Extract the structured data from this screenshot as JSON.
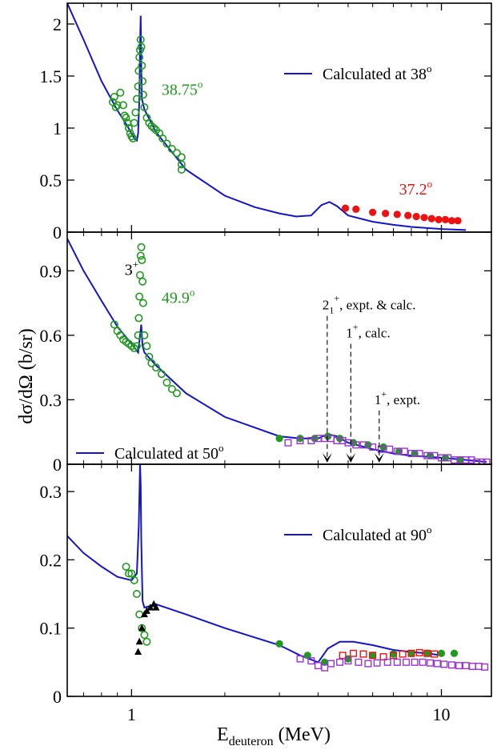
{
  "figure": {
    "xlabel_main": "E",
    "xlabel_sub": "deuteron",
    "xlabel_unit": " (MeV)",
    "ylabel": "dσ/dΩ (b/sr)"
  },
  "x_axis": {
    "scale": "log",
    "xlim": [
      0.62,
      14.5
    ],
    "ticks": [
      {
        "v": 1,
        "label": "1"
      },
      {
        "v": 10,
        "label": "10"
      }
    ],
    "minor": [
      0.7,
      0.8,
      0.9,
      2,
      3,
      4,
      5,
      6,
      7,
      8,
      9
    ]
  },
  "colors": {
    "curve": "#1414cc",
    "green": "#1f9a1f",
    "red": "#ee1111",
    "purple": "#9b30d9",
    "black": "#000000"
  },
  "chart_data": [
    {
      "type": "scatter",
      "panel": "top",
      "ylim": [
        0,
        2.2
      ],
      "yticks": [
        {
          "v": 0,
          "label": "0"
        },
        {
          "v": 0.5,
          "label": "0.5"
        },
        {
          "v": 1,
          "label": "1"
        },
        {
          "v": 1.5,
          "label": "1.5"
        },
        {
          "v": 2,
          "label": "2"
        }
      ],
      "legend": {
        "label": "Calculated at 38",
        "sup": "o",
        "position": "top-right"
      },
      "annotations": [
        {
          "text": "38.75",
          "sup": "o",
          "color": "green",
          "x": 1.25,
          "y": 1.32
        },
        {
          "text": "37.2",
          "sup": "o",
          "color": "red",
          "x": 7.3,
          "y": 0.36
        }
      ],
      "curve": {
        "name": "Calculated at 38°",
        "x": [
          0.62,
          0.7,
          0.8,
          0.9,
          0.96,
          1.0,
          1.02,
          1.04,
          1.05,
          1.06,
          1.065,
          1.07,
          1.075,
          1.08,
          1.1,
          1.2,
          1.5,
          2.0,
          2.5,
          3.0,
          3.4,
          3.8,
          4.1,
          4.35,
          4.6,
          5.0,
          6.0,
          7.0,
          8.0,
          10.0,
          12.0
        ],
        "y": [
          2.2,
          1.85,
          1.45,
          1.17,
          1.04,
          0.95,
          0.9,
          0.88,
          0.95,
          1.3,
          1.8,
          2.08,
          1.6,
          1.28,
          1.18,
          0.96,
          0.6,
          0.35,
          0.24,
          0.18,
          0.15,
          0.16,
          0.26,
          0.29,
          0.25,
          0.16,
          0.1,
          0.07,
          0.05,
          0.03,
          0.02
        ]
      },
      "series": [
        {
          "name": "38.75° data",
          "color": "green",
          "marker": "open-circle",
          "x": [
            0.87,
            0.88,
            0.89,
            0.9,
            0.92,
            0.94,
            0.95,
            0.96,
            0.97,
            0.98,
            0.99,
            1.0,
            1.01,
            1.02,
            1.03,
            1.04,
            1.05,
            1.055,
            1.06,
            1.065,
            1.07,
            1.075,
            1.08,
            1.085,
            1.09,
            1.1,
            1.12,
            1.14,
            1.16,
            1.18,
            1.2,
            1.23,
            1.26,
            1.3,
            1.35,
            1.4,
            1.45,
            1.45,
            1.45
          ],
          "y": [
            1.25,
            1.3,
            1.2,
            1.22,
            1.34,
            1.22,
            1.12,
            1.1,
            1.05,
            1.0,
            0.95,
            0.92,
            0.9,
            1.05,
            1.15,
            1.28,
            1.4,
            1.55,
            1.68,
            1.75,
            1.85,
            1.78,
            1.6,
            1.45,
            1.32,
            1.2,
            1.1,
            1.05,
            1.02,
            1.0,
            0.98,
            0.95,
            0.9,
            0.85,
            0.8,
            0.76,
            0.72,
            0.65,
            0.6
          ]
        },
        {
          "name": "37.2° data",
          "color": "red",
          "marker": "filled-circle",
          "x": [
            4.9,
            5.3,
            6.0,
            6.6,
            7.2,
            7.8,
            8.3,
            8.8,
            9.3,
            9.8,
            10.3,
            10.8,
            11.3
          ],
          "y": [
            0.23,
            0.22,
            0.19,
            0.18,
            0.17,
            0.16,
            0.15,
            0.14,
            0.13,
            0.12,
            0.12,
            0.11,
            0.11
          ]
        }
      ]
    },
    {
      "type": "scatter",
      "panel": "middle",
      "ylim": [
        0,
        1.08
      ],
      "yticks": [
        {
          "v": 0,
          "label": "0"
        },
        {
          "v": 0.3,
          "label": "0.3"
        },
        {
          "v": 0.6,
          "label": "0.6"
        },
        {
          "v": 0.9,
          "label": "0.9"
        }
      ],
      "legend": {
        "label": "Calculated at 50",
        "sup": "o",
        "position": "bottom-left"
      },
      "annotations": [
        {
          "text": "3",
          "sup": "+",
          "color": "black",
          "x": 0.95,
          "y": 0.88
        },
        {
          "text": "49.9",
          "sup": "o",
          "color": "green",
          "x": 1.25,
          "y": 0.75
        }
      ],
      "markers": [
        {
          "text": "2",
          "sub": "1",
          "sup": "+",
          "tail": ", expt. & calc.",
          "x": 4.28,
          "ytop": 0.69
        },
        {
          "text": "1",
          "sup": "+",
          "tail": ", calc.",
          "x": 5.1,
          "ytop": 0.56
        },
        {
          "text": "1",
          "sup": "+",
          "tail": ", expt.",
          "x": 6.3,
          "ytop": 0.25
        }
      ],
      "curve": {
        "name": "Calculated at 50°",
        "x": [
          0.62,
          0.7,
          0.8,
          0.9,
          1.0,
          1.05,
          1.065,
          1.075,
          1.085,
          1.1,
          1.2,
          1.5,
          2.0,
          3.0,
          3.5,
          4.0,
          4.3,
          4.6,
          5.0,
          6.0,
          7.0,
          8.0,
          10.0,
          12.0,
          14.0
        ],
        "y": [
          1.05,
          0.9,
          0.76,
          0.64,
          0.56,
          0.52,
          0.6,
          0.65,
          0.55,
          0.52,
          0.46,
          0.33,
          0.22,
          0.13,
          0.12,
          0.12,
          0.14,
          0.13,
          0.1,
          0.07,
          0.05,
          0.04,
          0.03,
          0.02,
          0.01
        ]
      },
      "series": [
        {
          "name": "49.9° data",
          "color": "green",
          "marker": "open-circle",
          "x": [
            0.88,
            0.9,
            0.92,
            0.94,
            0.96,
            0.98,
            1.0,
            1.02,
            1.04,
            1.05,
            1.055,
            1.06,
            1.065,
            1.07,
            1.075,
            1.08,
            1.085,
            1.09,
            1.1,
            1.12,
            1.14,
            1.16,
            1.2,
            1.25,
            1.3,
            1.35,
            1.4
          ],
          "y": [
            0.65,
            0.62,
            0.6,
            0.58,
            0.57,
            0.56,
            0.55,
            0.54,
            0.55,
            0.6,
            0.68,
            0.78,
            0.88,
            0.97,
            1.01,
            0.95,
            0.85,
            0.75,
            0.6,
            0.55,
            0.5,
            0.47,
            0.45,
            0.42,
            0.38,
            0.35,
            0.33
          ]
        },
        {
          "name": "green high energy",
          "color": "green",
          "marker": "filled-circle",
          "x": [
            3.0,
            3.5,
            3.9,
            4.3,
            4.7,
            5.2,
            5.8,
            6.5,
            7.3,
            8.2,
            9.2,
            10.3,
            11.5
          ],
          "y": [
            0.12,
            0.12,
            0.12,
            0.13,
            0.12,
            0.1,
            0.09,
            0.08,
            0.06,
            0.05,
            0.04,
            0.03,
            0.02
          ]
        },
        {
          "name": "purple data",
          "color": "purple",
          "marker": "open-square",
          "x": [
            3.2,
            3.5,
            3.8,
            4.0,
            4.2,
            4.4,
            4.6,
            4.8,
            5.0,
            5.3,
            5.6,
            6.0,
            6.4,
            6.8,
            7.2,
            7.6,
            8.0,
            8.5,
            9.0,
            9.5,
            10.0,
            10.5,
            11.0,
            11.5,
            12.0,
            12.5,
            13.0,
            13.5,
            14.0
          ],
          "y": [
            0.1,
            0.11,
            0.11,
            0.12,
            0.12,
            0.12,
            0.11,
            0.11,
            0.1,
            0.09,
            0.09,
            0.08,
            0.07,
            0.07,
            0.06,
            0.06,
            0.05,
            0.05,
            0.04,
            0.04,
            0.03,
            0.03,
            0.02,
            0.02,
            0.02,
            0.02,
            0.01,
            0.01,
            0.01
          ]
        }
      ]
    },
    {
      "type": "scatter",
      "panel": "bottom",
      "ylim": [
        0,
        0.34
      ],
      "yticks": [
        {
          "v": 0,
          "label": "0"
        },
        {
          "v": 0.1,
          "label": "0.1"
        },
        {
          "v": 0.2,
          "label": "0.2"
        },
        {
          "v": 0.3,
          "label": "0.3"
        }
      ],
      "legend": {
        "label": "Calculated at 90",
        "sup": "o",
        "position": "top-right"
      },
      "annotations": [],
      "curve": {
        "name": "Calculated at 90°",
        "x": [
          0.62,
          0.7,
          0.8,
          0.9,
          1.0,
          1.04,
          1.055,
          1.065,
          1.07,
          1.075,
          1.085,
          1.1,
          1.2,
          1.5,
          2.0,
          3.0,
          3.5,
          4.0,
          4.3,
          4.7,
          5.2,
          6.0,
          7.0,
          8.0,
          9.0,
          10.0
        ],
        "y": [
          0.235,
          0.21,
          0.19,
          0.175,
          0.17,
          0.18,
          0.25,
          0.34,
          0.31,
          0.23,
          0.14,
          0.13,
          0.135,
          0.12,
          0.1,
          0.075,
          0.06,
          0.05,
          0.07,
          0.08,
          0.08,
          0.075,
          0.068,
          0.065,
          0.063,
          0.06
        ]
      },
      "series": [
        {
          "name": "green open",
          "color": "green",
          "marker": "open-circle",
          "x": [
            0.96,
            0.98,
            1.0,
            1.02,
            1.04,
            1.06,
            1.08,
            1.1,
            1.12
          ],
          "y": [
            0.19,
            0.18,
            0.18,
            0.17,
            0.15,
            0.12,
            0.1,
            0.09,
            0.08
          ]
        },
        {
          "name": "black triangles",
          "color": "black",
          "marker": "filled-triangle",
          "x": [
            1.05,
            1.06,
            1.08,
            1.1,
            1.12,
            1.15,
            1.18,
            1.2
          ],
          "y": [
            0.065,
            0.08,
            0.1,
            0.12,
            0.125,
            0.13,
            0.135,
            0.13
          ]
        },
        {
          "name": "green filled",
          "color": "green",
          "marker": "filled-circle",
          "x": [
            3.0,
            3.7,
            4.2,
            5.0,
            6.0,
            7.0,
            8.0,
            9.0,
            10.0,
            11.0
          ],
          "y": [
            0.077,
            0.06,
            0.05,
            0.055,
            0.06,
            0.062,
            0.063,
            0.063,
            0.063,
            0.063
          ]
        },
        {
          "name": "red squares",
          "color": "red",
          "marker": "open-square",
          "x": [
            4.8,
            5.2,
            5.6,
            6.0,
            6.5,
            7.0,
            7.5,
            8.0,
            8.5,
            9.0,
            9.5
          ],
          "y": [
            0.06,
            0.063,
            0.062,
            0.06,
            0.058,
            0.06,
            0.062,
            0.063,
            0.064,
            0.063,
            0.062
          ]
        },
        {
          "name": "purple squares",
          "color": "purple",
          "marker": "open-square",
          "x": [
            3.5,
            3.8,
            4.0,
            4.2,
            4.4,
            4.7,
            5.0,
            5.4,
            5.8,
            6.2,
            6.7,
            7.2,
            7.7,
            8.2,
            8.7,
            9.2,
            9.7,
            10.2,
            10.8,
            11.4,
            12.0,
            12.6,
            13.2,
            13.8
          ],
          "y": [
            0.055,
            0.052,
            0.045,
            0.042,
            0.048,
            0.05,
            0.052,
            0.05,
            0.048,
            0.049,
            0.05,
            0.05,
            0.05,
            0.05,
            0.05,
            0.049,
            0.048,
            0.047,
            0.046,
            0.045,
            0.045,
            0.044,
            0.044,
            0.043
          ]
        }
      ]
    }
  ]
}
